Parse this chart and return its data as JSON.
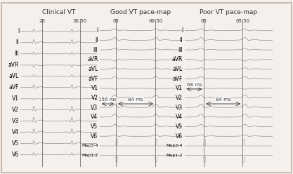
{
  "title_left": "Clinical VT",
  "title_mid": "Good VT pace-map",
  "title_right": "Poor VT pace-map",
  "leads_left": [
    "I",
    "II",
    "III",
    "aVR",
    "aVL",
    "aVF",
    "V1",
    "V2",
    "V3",
    "V4",
    "V5",
    "V6"
  ],
  "leads_right": [
    "I",
    "II",
    "III",
    "aVR",
    "aVL",
    "aVF",
    "V1",
    "V2",
    "V3",
    "V4",
    "V5",
    "V6",
    "Map3-4",
    "Map1-2"
  ],
  "tick_left": [
    "20",
    "30.50"
  ],
  "tick_mid": [
    "05",
    "06.50"
  ],
  "tick_right": [
    "05",
    "05.50"
  ],
  "annotation_mid_left": "156 ms",
  "annotation_mid_right": "84 ms",
  "annotation_right_left": "68 ms",
  "annotation_right_right": "84 ms",
  "bg_color": "#f5f0ec",
  "line_color": "#888888",
  "border_color": "#ccbbaa",
  "panel_bg": "#faf7f4",
  "title_fontsize": 6.5,
  "label_fontsize": 5.5,
  "tick_fontsize": 5.0,
  "annot_fontsize": 5.0
}
